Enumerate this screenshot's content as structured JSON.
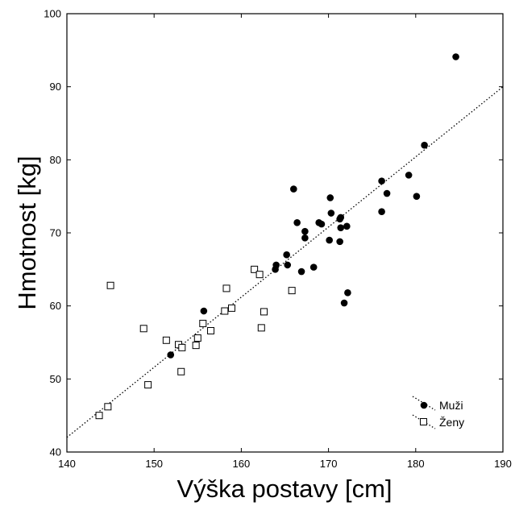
{
  "chart_data": {
    "type": "scatter",
    "xlabel": "Výška postavy [cm]",
    "ylabel": "Hmotnost [kg]",
    "xlim": [
      140,
      190
    ],
    "ylim": [
      40,
      100
    ],
    "xticks": [
      "140",
      "150",
      "160",
      "170",
      "180",
      "190"
    ],
    "yticks": [
      "40",
      "50",
      "60",
      "70",
      "80",
      "90",
      "100"
    ],
    "grid": false,
    "legend_position": "bottom-right",
    "trendline": {
      "style": "dotted",
      "from": [
        140,
        42
      ],
      "to": [
        190,
        90
      ]
    },
    "series": [
      {
        "name": "Muži",
        "marker": "filled-circle",
        "points": [
          [
            151.9,
            53.3
          ],
          [
            155.7,
            59.3
          ],
          [
            163.9,
            65.0
          ],
          [
            164.0,
            65.6
          ],
          [
            165.2,
            67.0
          ],
          [
            165.3,
            65.6
          ],
          [
            166.0,
            76.0
          ],
          [
            166.4,
            71.4
          ],
          [
            166.9,
            64.7
          ],
          [
            167.3,
            70.2
          ],
          [
            167.3,
            69.3
          ],
          [
            168.3,
            65.3
          ],
          [
            168.9,
            71.4
          ],
          [
            169.2,
            71.2
          ],
          [
            170.1,
            69.0
          ],
          [
            170.2,
            74.8
          ],
          [
            170.3,
            72.7
          ],
          [
            171.3,
            71.9
          ],
          [
            171.4,
            72.1
          ],
          [
            171.4,
            70.7
          ],
          [
            171.3,
            68.8
          ],
          [
            171.8,
            60.4
          ],
          [
            172.1,
            70.9
          ],
          [
            172.2,
            61.8
          ],
          [
            176.1,
            77.1
          ],
          [
            176.1,
            72.9
          ],
          [
            176.7,
            75.4
          ],
          [
            179.2,
            77.9
          ],
          [
            180.1,
            75.0
          ],
          [
            181.0,
            82.0
          ],
          [
            184.6,
            94.1
          ]
        ]
      },
      {
        "name": "Ženy",
        "marker": "open-square",
        "points": [
          [
            143.7,
            45.0
          ],
          [
            144.7,
            46.2
          ],
          [
            145.0,
            62.8
          ],
          [
            148.8,
            56.9
          ],
          [
            149.3,
            49.2
          ],
          [
            151.4,
            55.3
          ],
          [
            152.8,
            54.7
          ],
          [
            153.1,
            51.0
          ],
          [
            153.2,
            54.3
          ],
          [
            154.8,
            54.6
          ],
          [
            155.0,
            55.6
          ],
          [
            155.6,
            57.6
          ],
          [
            156.5,
            56.6
          ],
          [
            158.1,
            59.3
          ],
          [
            158.3,
            62.4
          ],
          [
            158.9,
            59.7
          ],
          [
            161.5,
            65.0
          ],
          [
            162.1,
            64.3
          ],
          [
            162.3,
            57.0
          ],
          [
            162.6,
            59.2
          ],
          [
            165.8,
            62.1
          ]
        ]
      }
    ]
  }
}
